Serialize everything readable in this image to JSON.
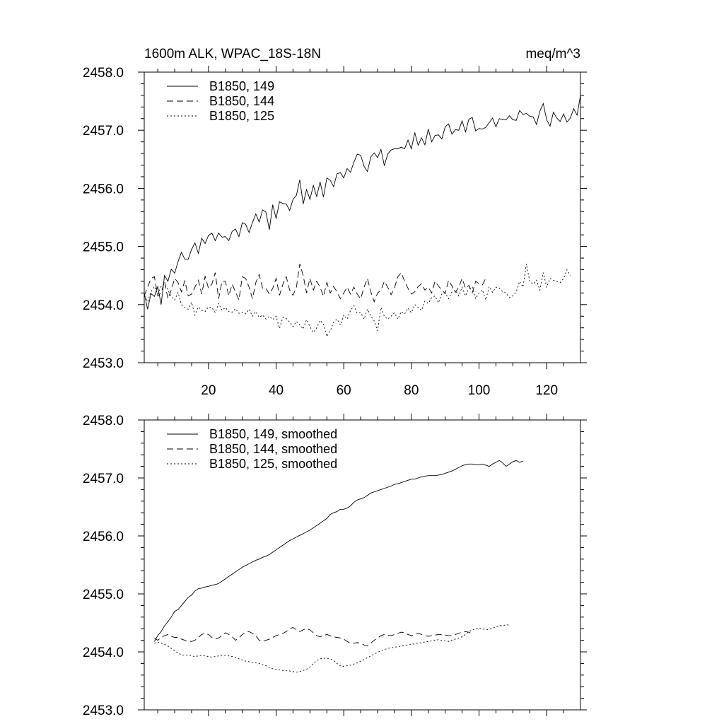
{
  "figure": {
    "title_left": "1600m ALK, WPAC_18S-18N",
    "title_right": "meq/m^3"
  },
  "chart_data": [
    {
      "type": "line",
      "title": "1600m ALK, WPAC_18S-18N",
      "units": "meq/m^3",
      "xlim": [
        1,
        130
      ],
      "ylim": [
        2453.0,
        2458.0
      ],
      "xticks": [
        20,
        40,
        60,
        80,
        100,
        120
      ],
      "xtick_labels": [
        "20",
        "40",
        "60",
        "80",
        "100",
        "120"
      ],
      "yticks": [
        2453.0,
        2454.0,
        2455.0,
        2456.0,
        2457.0,
        2458.0
      ],
      "ytick_labels": [
        "2453.0",
        "2454.0",
        "2455.0",
        "2456.0",
        "2457.0",
        "2458.0"
      ],
      "legend_position": "top-left",
      "series": [
        {
          "name": "B1850, 149",
          "style": "solid",
          "x_start": 1,
          "values": [
            2454.2,
            2453.92,
            2454.19,
            2454.14,
            2454.31,
            2454.0,
            2454.5,
            2454.4,
            2454.61,
            2454.54,
            2454.74,
            2454.9,
            2454.78,
            2454.78,
            2454.95,
            2455.06,
            2454.88,
            2455.14,
            2455.05,
            2455.19,
            2455.23,
            2455.1,
            2455.23,
            2455.16,
            2455.17,
            2455.1,
            2455.26,
            2455.3,
            2455.17,
            2455.41,
            2455.38,
            2455.24,
            2455.41,
            2455.56,
            2455.42,
            2455.63,
            2455.59,
            2455.29,
            2455.72,
            2455.48,
            2455.77,
            2455.74,
            2455.73,
            2455.62,
            2455.81,
            2455.88,
            2456.15,
            2455.73,
            2455.98,
            2455.81,
            2456.05,
            2455.86,
            2456.11,
            2455.85,
            2456.18,
            2456.14,
            2456.03,
            2456.25,
            2456.27,
            2456.18,
            2456.34,
            2456.28,
            2456.45,
            2456.59,
            2456.57,
            2456.38,
            2456.29,
            2456.54,
            2456.61,
            2456.53,
            2456.67,
            2456.39,
            2456.59,
            2456.66,
            2456.68,
            2456.68,
            2456.71,
            2456.68,
            2456.83,
            2456.68,
            2456.96,
            2456.74,
            2456.87,
            2456.75,
            2457.02,
            2456.8,
            2456.91,
            2456.92,
            2456.85,
            2457.06,
            2457.11,
            2456.93,
            2457.01,
            2457.0,
            2457.16,
            2456.97,
            2457.19,
            2457.22,
            2456.99,
            2457.03,
            2457.02,
            2457.05,
            2457.13,
            2457.21,
            2457.06,
            2457.2,
            2457.18,
            2457.18,
            2457.25,
            2457.18,
            2457.17,
            2457.34,
            2457.27,
            2457.29,
            2457.24,
            2457.23,
            2457.1,
            2457.33,
            2457.46,
            2457.18,
            2457.07,
            2457.31,
            2457.21,
            2457.15,
            2457.28,
            2457.14,
            2457.21,
            2457.37,
            2457.26,
            2457.6
          ]
        },
        {
          "name": "B1850, 144",
          "style": "dashed",
          "x_start": 1,
          "values": [
            2454.15,
            2454.3,
            2454.45,
            2454.48,
            2454.15,
            2454.2,
            2454.4,
            2454.1,
            2454.25,
            2454.45,
            2454.38,
            2454.22,
            2454.41,
            2454.15,
            2454.18,
            2454.3,
            2454.42,
            2454.18,
            2454.49,
            2454.28,
            2454.35,
            2454.55,
            2454.1,
            2454.4,
            2454.4,
            2454.15,
            2454.35,
            2454.22,
            2454.08,
            2454.48,
            2454.45,
            2454.3,
            2454.1,
            2454.38,
            2454.52,
            2454.28,
            2454.28,
            2454.18,
            2454.28,
            2454.45,
            2454.16,
            2454.35,
            2454.48,
            2454.25,
            2454.16,
            2454.3,
            2454.7,
            2454.5,
            2454.2,
            2454.45,
            2454.25,
            2454.4,
            2454.3,
            2454.14,
            2454.38,
            2454.2,
            2454.31,
            2454.22,
            2454.1,
            2454.2,
            2454.3,
            2454.18,
            2454.3,
            2454.18,
            2454.1,
            2454.3,
            2454.45,
            2454.22,
            2454.05,
            2454.2,
            2454.25,
            2454.4,
            2454.3,
            2454.17,
            2454.29,
            2454.48,
            2454.55,
            2454.4,
            2454.28,
            2454.18,
            2454.22,
            2454.31,
            2454.36,
            2454.25,
            2454.3,
            2454.2,
            2454.4,
            2454.32,
            2454.25,
            2454.19,
            2454.42,
            2454.32,
            2454.21,
            2454.3,
            2454.45,
            2454.28,
            2454.33,
            2454.2,
            2454.4,
            2454.36,
            2454.34,
            2454.45
          ]
        },
        {
          "name": "B1850, 125",
          "style": "dotted",
          "x_start": 1,
          "values": [
            2454.15,
            2454.05,
            2454.22,
            2454.31,
            2454.18,
            2454.31,
            2454.36,
            2454.25,
            2454.14,
            2454.08,
            2454.21,
            2454.0,
            2453.95,
            2453.92,
            2454.04,
            2453.82,
            2453.96,
            2453.9,
            2453.88,
            2453.96,
            2453.95,
            2453.86,
            2454.02,
            2453.9,
            2453.95,
            2453.88,
            2453.87,
            2453.93,
            2453.85,
            2453.87,
            2453.84,
            2453.92,
            2453.8,
            2453.88,
            2453.78,
            2453.82,
            2453.75,
            2453.8,
            2453.74,
            2453.8,
            2453.59,
            2453.78,
            2453.76,
            2453.7,
            2453.62,
            2453.71,
            2453.65,
            2453.58,
            2453.74,
            2453.62,
            2453.52,
            2453.6,
            2453.73,
            2453.66,
            2453.45,
            2453.55,
            2453.7,
            2453.75,
            2453.65,
            2453.82,
            2453.75,
            2453.9,
            2453.98,
            2453.85,
            2453.86,
            2453.75,
            2453.92,
            2453.8,
            2453.72,
            2453.55,
            2453.95,
            2453.8,
            2453.75,
            2453.8,
            2453.86,
            2453.75,
            2453.88,
            2453.84,
            2453.94,
            2453.86,
            2454.0,
            2453.95,
            2453.9,
            2454.06,
            2454.02,
            2454.12,
            2454.15,
            2454.03,
            2454.18,
            2454.2,
            2454.1,
            2454.22,
            2454.25,
            2454.15,
            2454.3,
            2454.15,
            2454.28,
            2454.3,
            2454.1,
            2454.2,
            2454.25,
            2454.08,
            2454.31,
            2454.21,
            2454.3,
            2454.28,
            2454.22,
            2454.2,
            2454.12,
            2454.15,
            2454.22,
            2454.4,
            2454.3,
            2454.7,
            2454.4,
            2454.35,
            2454.42,
            2454.25,
            2454.55,
            2454.3,
            2454.45,
            2454.42,
            2454.4,
            2454.38,
            2454.45,
            2454.6,
            2454.5
          ]
        }
      ]
    },
    {
      "type": "line",
      "xlim": [
        1,
        130
      ],
      "ylim": [
        2453.0,
        2458.0
      ],
      "xticks": [
        20,
        40,
        60,
        80,
        100,
        120
      ],
      "yticks": [
        2453.0,
        2454.0,
        2455.0,
        2456.0,
        2457.0,
        2458.0
      ],
      "ytick_labels": [
        "2453.0",
        "2454.0",
        "2455.0",
        "2456.0",
        "2457.0",
        "2458.0"
      ],
      "legend_position": "top-left",
      "series": [
        {
          "name": "B1850, 149, smoothed",
          "style": "solid",
          "x_start": 4,
          "values": [
            2454.18,
            2454.28,
            2454.35,
            2454.45,
            2454.52,
            2454.6,
            2454.7,
            2454.73,
            2454.8,
            2454.87,
            2454.94,
            2454.98,
            2455.05,
            2455.09,
            2455.1,
            2455.12,
            2455.13,
            2455.15,
            2455.16,
            2455.18,
            2455.22,
            2455.26,
            2455.3,
            2455.34,
            2455.38,
            2455.42,
            2455.46,
            2455.49,
            2455.52,
            2455.55,
            2455.58,
            2455.6,
            2455.63,
            2455.65,
            2455.68,
            2455.72,
            2455.76,
            2455.8,
            2455.84,
            2455.88,
            2455.92,
            2455.95,
            2455.98,
            2456.01,
            2456.04,
            2456.07,
            2456.1,
            2456.14,
            2456.18,
            2456.22,
            2456.26,
            2456.3,
            2456.37,
            2456.4,
            2456.42,
            2456.46,
            2456.46,
            2456.48,
            2456.52,
            2456.58,
            2456.62,
            2456.64,
            2456.66,
            2456.7,
            2456.74,
            2456.76,
            2456.78,
            2456.8,
            2456.82,
            2456.84,
            2456.86,
            2456.89,
            2456.9,
            2456.92,
            2456.94,
            2456.96,
            2456.98,
            2456.98,
            2457.0,
            2457.02,
            2457.03,
            2457.04,
            2457.04,
            2457.04,
            2457.05,
            2457.06,
            2457.08,
            2457.1,
            2457.12,
            2457.15,
            2457.18,
            2457.21,
            2457.23,
            2457.24,
            2457.24,
            2457.23,
            2457.23,
            2457.24,
            2457.22,
            2457.2,
            2457.24,
            2457.27,
            2457.3,
            2457.26,
            2457.2,
            2457.24,
            2457.28,
            2457.3,
            2457.27,
            2457.29
          ]
        },
        {
          "name": "B1850, 144, smoothed",
          "style": "dashed",
          "x_start": 4,
          "values": [
            2454.24,
            2454.2,
            2454.25,
            2454.28,
            2454.3,
            2454.27,
            2454.25,
            2454.25,
            2454.22,
            2454.2,
            2454.18,
            2454.18,
            2454.2,
            2454.25,
            2454.3,
            2454.32,
            2454.3,
            2454.25,
            2454.22,
            2454.24,
            2454.28,
            2454.33,
            2454.3,
            2454.26,
            2454.2,
            2454.24,
            2454.3,
            2454.34,
            2454.35,
            2454.32,
            2454.28,
            2454.2,
            2454.18,
            2454.2,
            2454.22,
            2454.25,
            2454.28,
            2454.3,
            2454.32,
            2454.35,
            2454.4,
            2454.42,
            2454.38,
            2454.35,
            2454.38,
            2454.4,
            2454.38,
            2454.33,
            2454.28,
            2454.26,
            2454.28,
            2454.3,
            2454.28,
            2454.26,
            2454.25,
            2454.24,
            2454.22,
            2454.18,
            2454.15,
            2454.15,
            2454.16,
            2454.15,
            2454.12,
            2454.1,
            2454.15,
            2454.2,
            2454.24,
            2454.28,
            2454.3,
            2454.29,
            2454.28,
            2454.3,
            2454.32,
            2454.34,
            2454.33,
            2454.3,
            2454.28,
            2454.3,
            2454.32,
            2454.3,
            2454.28,
            2454.27,
            2454.28,
            2454.29,
            2454.3,
            2454.3,
            2454.29,
            2454.28,
            2454.28,
            2454.3,
            2454.32,
            2454.34,
            2454.35,
            2454.34,
            2454.31
          ]
        },
        {
          "name": "B1850, 125, smoothed",
          "style": "dotted",
          "x_start": 4,
          "values": [
            2454.15,
            2454.17,
            2454.15,
            2454.13,
            2454.1,
            2454.06,
            2454.02,
            2453.98,
            2453.95,
            2453.94,
            2453.95,
            2453.93,
            2453.92,
            2453.93,
            2453.94,
            2453.93,
            2453.92,
            2453.91,
            2453.92,
            2453.93,
            2453.94,
            2453.94,
            2453.93,
            2453.92,
            2453.9,
            2453.88,
            2453.86,
            2453.84,
            2453.83,
            2453.82,
            2453.81,
            2453.8,
            2453.78,
            2453.76,
            2453.73,
            2453.71,
            2453.7,
            2453.69,
            2453.68,
            2453.68,
            2453.67,
            2453.66,
            2453.65,
            2453.66,
            2453.68,
            2453.7,
            2453.74,
            2453.8,
            2453.85,
            2453.88,
            2453.89,
            2453.89,
            2453.88,
            2453.85,
            2453.8,
            2453.76,
            2453.75,
            2453.76,
            2453.77,
            2453.79,
            2453.81,
            2453.84,
            2453.87,
            2453.9,
            2453.93,
            2453.96,
            2453.99,
            2454.02,
            2454.04,
            2454.06,
            2454.07,
            2454.08,
            2454.09,
            2454.1,
            2454.11,
            2454.12,
            2454.13,
            2454.14,
            2454.15,
            2454.16,
            2454.17,
            2454.18,
            2454.19,
            2454.2,
            2454.21,
            2454.2,
            2454.19,
            2454.18,
            2454.2,
            2454.22,
            2454.24,
            2454.26,
            2454.3,
            2454.35,
            2454.38,
            2454.4,
            2454.41,
            2454.4,
            2454.38,
            2454.39,
            2454.41,
            2454.43,
            2454.45,
            2454.46,
            2454.46,
            2454.47
          ]
        }
      ]
    }
  ]
}
